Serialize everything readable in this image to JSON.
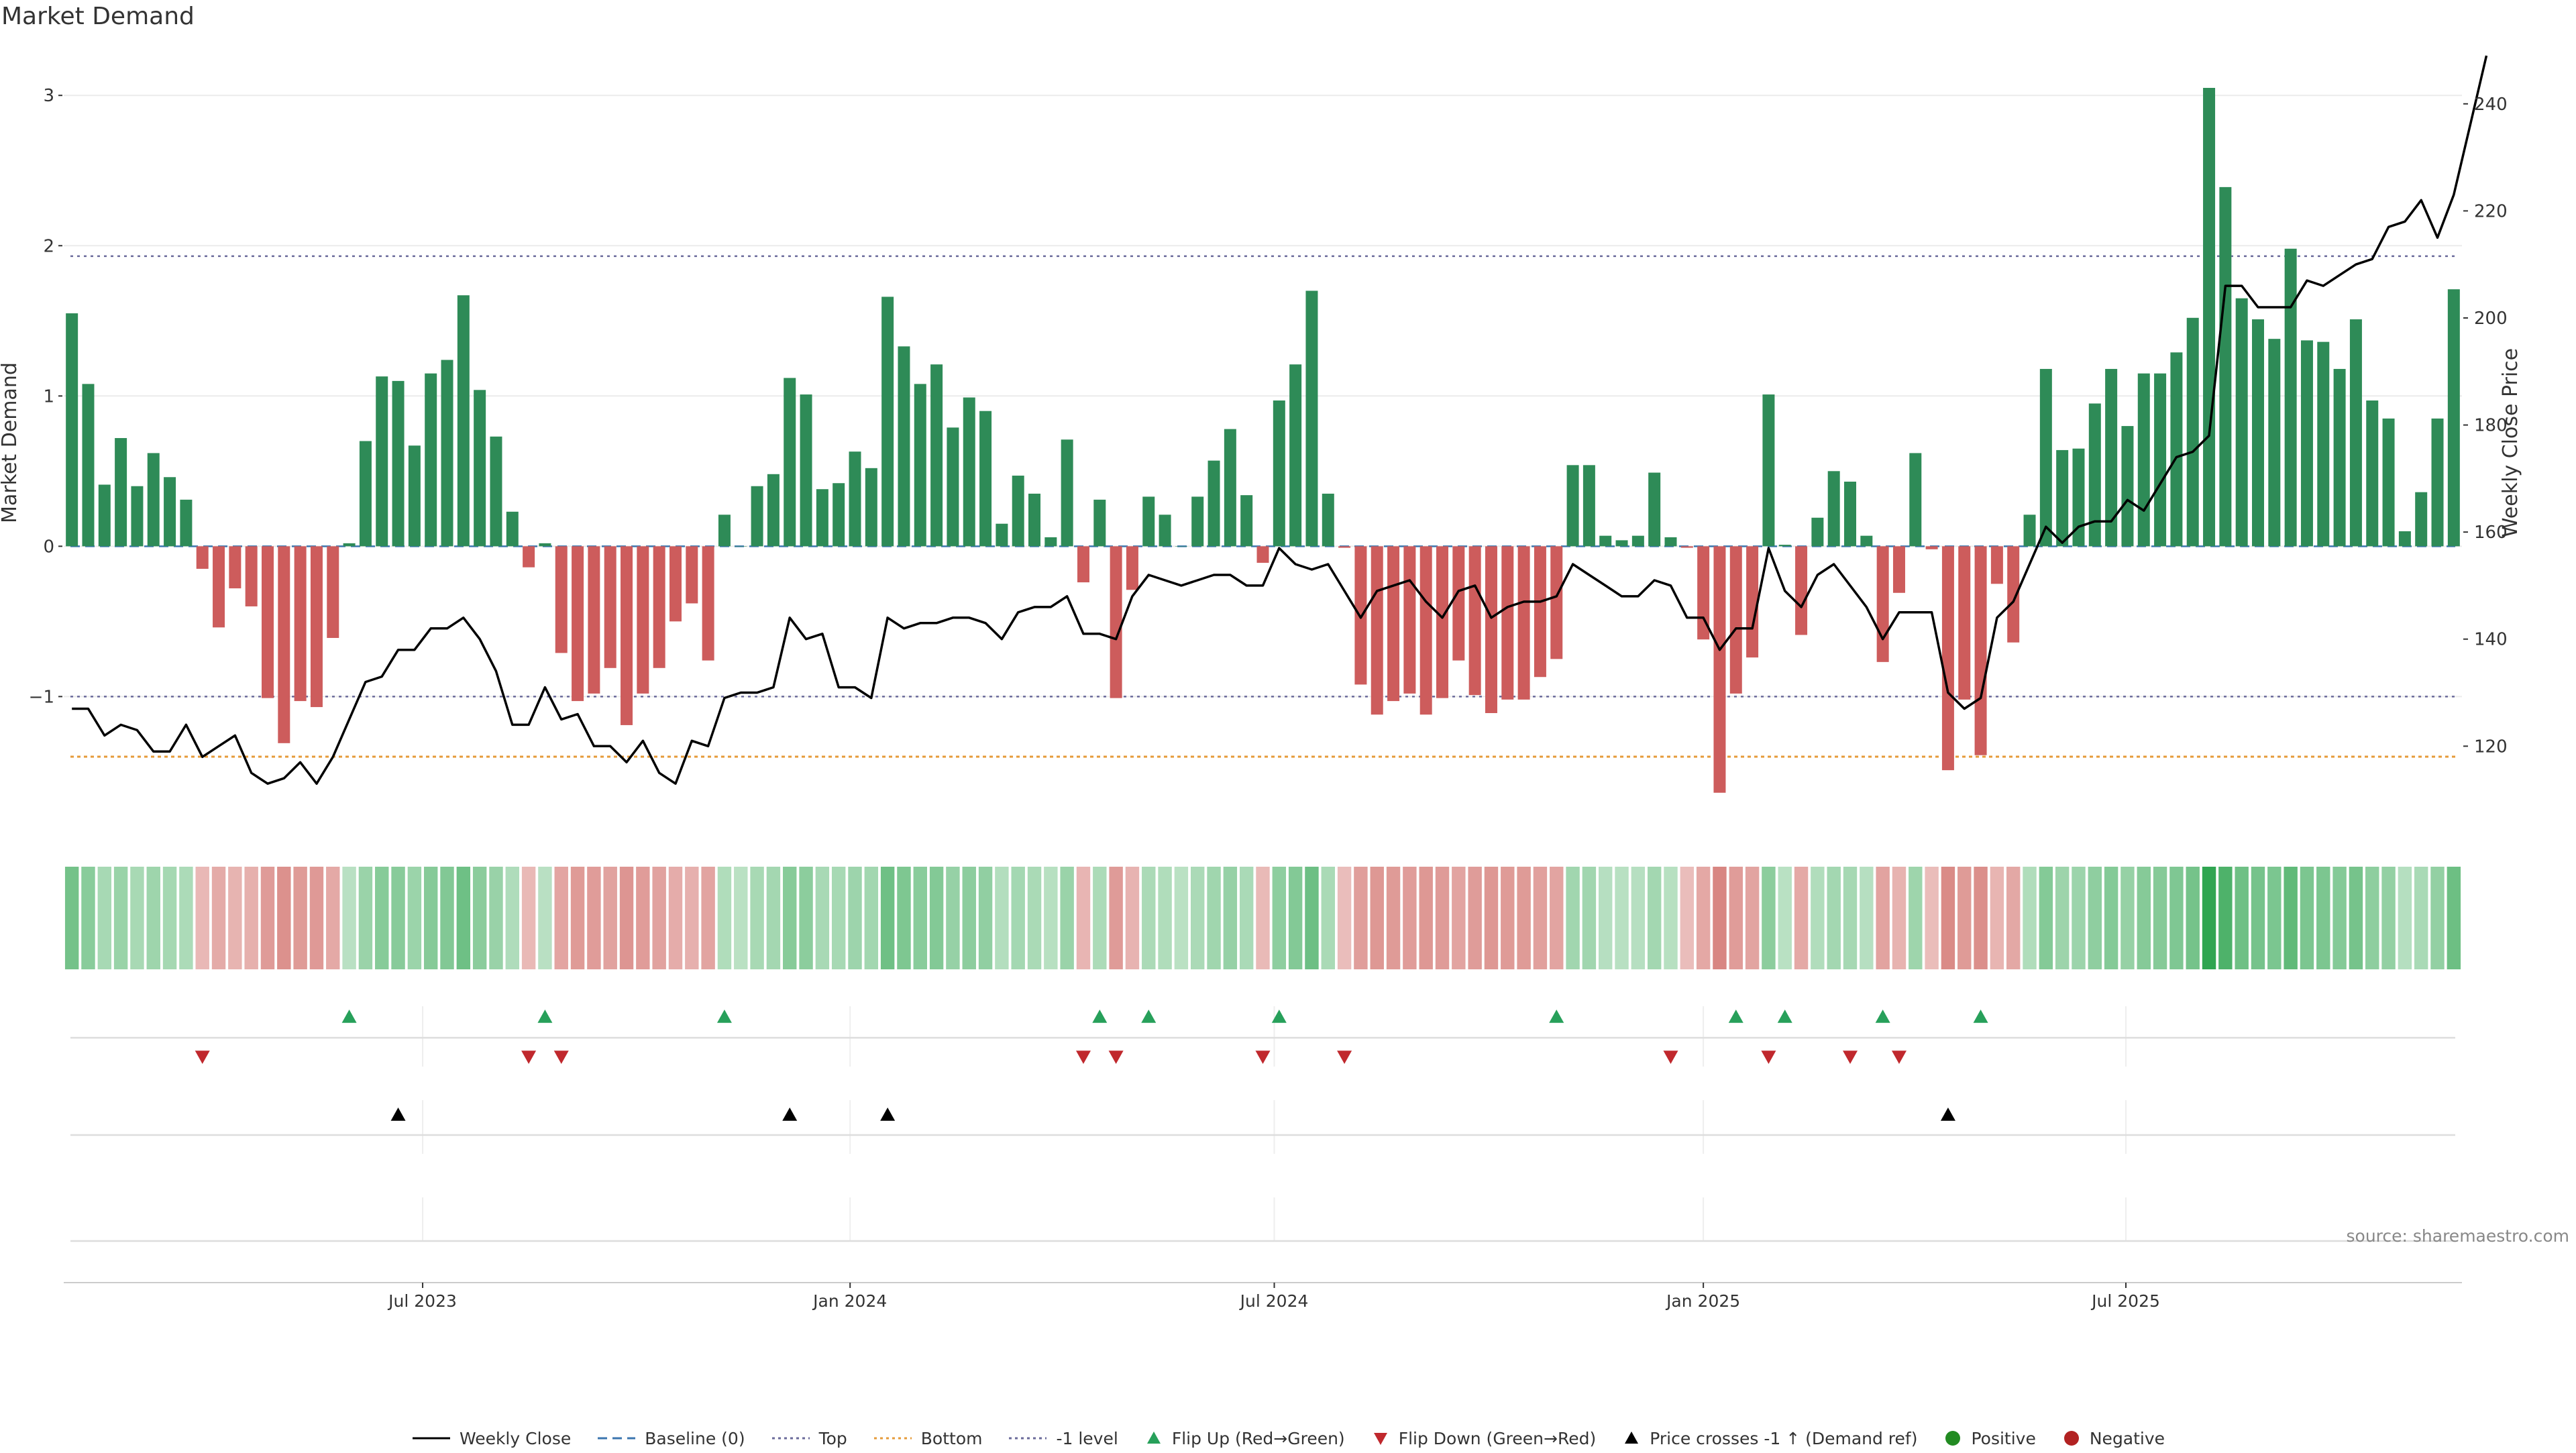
{
  "title": "Market Demand",
  "source": "source: sharemaestro.com",
  "colors": {
    "positive": "#2e8b57",
    "negative": "#cd5c5c",
    "price": "#000000",
    "top": "#6a6a9a",
    "bottom": "#e69b3a",
    "neg1": "#6a6a9a",
    "flip_up": "#27a05a",
    "flip_down": "#c0282d",
    "cross": "#000000",
    "legend_positive": "#228b22",
    "legend_negative": "#b22222",
    "baseline": "#3b75af"
  },
  "chart_data": {
    "type": "bar",
    "title": "Market Demand",
    "ylabel": "Market Demand",
    "y2label": "Weekly Close Price",
    "ylim": [
      -1.9,
      3.3
    ],
    "y2lim": [
      104,
      250
    ],
    "yticks": [
      -1,
      0,
      1,
      2,
      3
    ],
    "y2ticks": [
      120,
      140,
      160,
      180,
      200,
      220,
      240
    ],
    "x_ticks": [
      {
        "label": "Jul 2023",
        "index": 21.5
      },
      {
        "label": "Jan 2024",
        "index": 47.7
      },
      {
        "label": "Jul 2024",
        "index": 73.7
      },
      {
        "label": "Jan 2025",
        "index": 100
      },
      {
        "label": "Jul 2025",
        "index": 125.9
      }
    ],
    "levels": {
      "top": 1.93,
      "bottom": -1.4,
      "neg1": -1.0
    },
    "demand": [
      1.55,
      1.08,
      0.41,
      0.72,
      0.4,
      0.62,
      0.46,
      0.31,
      -0.15,
      -0.54,
      -0.28,
      -0.4,
      -1.01,
      -1.31,
      -1.03,
      -1.07,
      -0.61,
      0.02,
      0.7,
      1.13,
      1.1,
      0.67,
      1.15,
      1.24,
      1.67,
      1.04,
      0.73,
      0.23,
      -0.14,
      0.02,
      -0.71,
      -1.03,
      -0.98,
      -0.81,
      -1.19,
      -0.98,
      -0.81,
      -0.5,
      -0.38,
      -0.76,
      0.21,
      0.0,
      0.4,
      0.48,
      1.12,
      1.01,
      0.38,
      0.42,
      0.63,
      0.52,
      1.66,
      1.33,
      1.08,
      1.21,
      0.79,
      0.99,
      0.9,
      0.15,
      0.47,
      0.35,
      0.06,
      0.71,
      -0.24,
      0.31,
      -1.01,
      -0.29,
      0.33,
      0.21,
      0.0,
      0.33,
      0.57,
      0.78,
      0.34,
      -0.11,
      0.97,
      1.21,
      1.7,
      0.35,
      -0.01,
      -0.92,
      -1.12,
      -1.03,
      -0.98,
      -1.12,
      -1.01,
      -0.76,
      -0.99,
      -1.11,
      -1.02,
      -1.02,
      -0.87,
      -0.75,
      0.54,
      0.54,
      0.07,
      0.04,
      0.07,
      0.49,
      0.06,
      -0.01,
      -0.62,
      -1.64,
      -0.98,
      -0.74,
      1.01,
      0.01,
      -0.59,
      0.19,
      0.5,
      0.43,
      0.07,
      -0.77,
      -0.31,
      0.62,
      -0.02,
      -1.49,
      -1.02,
      -1.39,
      -0.25,
      -0.64,
      0.21,
      1.18,
      0.64,
      0.65,
      0.95,
      1.18,
      0.8,
      1.15,
      1.15,
      1.29,
      1.52,
      3.05,
      2.39,
      1.65,
      1.51,
      1.38,
      1.98,
      1.37,
      1.36,
      1.18,
      1.51,
      0.97,
      0.85,
      0.1,
      0.36,
      0.85,
      1.71
    ],
    "price": [
      127,
      127,
      122,
      124,
      123,
      119,
      119,
      124,
      118,
      120,
      122,
      115,
      113,
      114,
      117,
      113,
      118,
      125,
      132,
      133,
      138,
      138,
      142,
      142,
      144,
      140,
      134,
      124,
      124,
      131,
      125,
      126,
      120,
      120,
      117,
      121,
      115,
      113,
      121,
      120,
      129,
      130,
      130,
      131,
      144,
      140,
      141,
      131,
      131,
      129,
      144,
      142,
      143,
      143,
      144,
      144,
      143,
      140,
      145,
      146,
      146,
      148,
      141,
      141,
      140,
      148,
      152,
      151,
      150,
      151,
      152,
      152,
      150,
      150,
      157,
      154,
      153,
      154,
      149,
      144,
      149,
      150,
      151,
      147,
      144,
      149,
      150,
      144,
      146,
      147,
      147,
      148,
      154,
      152,
      150,
      148,
      148,
      151,
      150,
      144,
      144,
      138,
      142,
      142,
      157,
      149,
      146,
      152,
      154,
      150,
      146,
      140,
      145,
      145,
      145,
      130,
      127,
      129,
      144,
      147,
      154,
      161,
      158,
      161,
      162,
      162,
      166,
      164,
      169,
      174,
      175,
      178,
      206,
      206,
      202,
      202,
      202,
      207,
      206,
      208,
      210,
      211,
      217,
      218,
      222,
      215,
      223,
      236,
      249
    ],
    "flip_up_indices": [
      17,
      29,
      40,
      63,
      66,
      74,
      91,
      102,
      105,
      111,
      117
    ],
    "flip_down_indices": [
      8,
      28,
      30,
      62,
      64,
      73,
      78,
      98,
      104,
      109,
      112
    ],
    "cross_up_indices": [
      20,
      44,
      50,
      115
    ]
  },
  "legend": [
    {
      "label": "Weekly Close",
      "symbol": "line",
      "color": "#000000"
    },
    {
      "label": "Baseline (0)",
      "symbol": "dash",
      "color": "#3b75af"
    },
    {
      "label": "Top",
      "symbol": "dot",
      "color": "#6a6a9a"
    },
    {
      "label": "Bottom",
      "symbol": "dot",
      "color": "#e69b3a"
    },
    {
      "label": "-1 level",
      "symbol": "dot",
      "color": "#6a6a9a"
    },
    {
      "label": "Flip Up (Red→Green)",
      "symbol": "tri-up",
      "color": "#27a05a"
    },
    {
      "label": "Flip Down (Green→Red)",
      "symbol": "tri-down",
      "color": "#c0282d"
    },
    {
      "label": "Price crosses -1 ↑ (Demand ref)",
      "symbol": "tri-up",
      "color": "#000000"
    },
    {
      "label": "Positive",
      "symbol": "circle",
      "color": "#228b22"
    },
    {
      "label": "Negative",
      "symbol": "circle",
      "color": "#b22222"
    }
  ]
}
